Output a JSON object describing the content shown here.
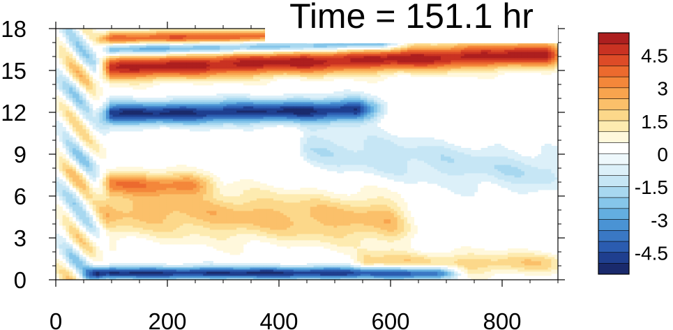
{
  "title": "Time = 151.1 hr",
  "chart_data": {
    "type": "heatmap",
    "title": "Time = 151.1 hr",
    "xlabel": "",
    "ylabel": "",
    "xlim": [
      0,
      900
    ],
    "ylim": [
      0,
      18
    ],
    "x_ticks": [
      0,
      200,
      400,
      600,
      800
    ],
    "x_tick_labels": [
      "0",
      "200",
      "400",
      "600",
      "800"
    ],
    "y_ticks": [
      0,
      3,
      6,
      9,
      12,
      15,
      18
    ],
    "y_tick_labels": [
      "0",
      "3",
      "6",
      "9",
      "12",
      "15",
      "18"
    ],
    "grid": false,
    "legend_placement": "right",
    "colorbar": {
      "levels": [
        -5.5,
        -5,
        -4.5,
        -4,
        -3.5,
        -3,
        -2.5,
        -2,
        -1.5,
        -1,
        -0.5,
        0,
        0.5,
        1,
        1.5,
        2,
        2.5,
        3,
        3.5,
        4,
        4.5,
        5,
        5.5
      ],
      "colors": [
        "#1a2a6c",
        "#1f3f8f",
        "#2b5cb0",
        "#3a78c4",
        "#4a93d4",
        "#63aee0",
        "#86c6ea",
        "#a8d8f0",
        "#c6e6f5",
        "#dcf0f9",
        "#eef8fc",
        "#ffffff",
        "#fff8dc",
        "#fdebb0",
        "#fcd88a",
        "#fbc06a",
        "#f8a44e",
        "#f4873a",
        "#ec6a2e",
        "#dd4b27",
        "#c93222",
        "#ad1f1f"
      ],
      "tick_values": [
        4.5,
        3,
        1.5,
        0,
        -1.5,
        -3,
        -4.5
      ],
      "tick_labels": [
        "4.5",
        "3",
        "1.5",
        "0",
        "-1.5",
        "-3",
        "-4.5"
      ]
    },
    "features": [
      {
        "kind": "band",
        "sign": 1,
        "x_start": 95,
        "x_end": 900,
        "y_center": 15.2,
        "y_center_end": 16.2,
        "width": 0.9,
        "peak": 5.2
      },
      {
        "kind": "band",
        "sign": -1,
        "x_start": 95,
        "x_end": 560,
        "y_center": 11.9,
        "y_center_end": 12.2,
        "width": 0.8,
        "peak": 5.0
      },
      {
        "kind": "band",
        "sign": -1,
        "x_start": 70,
        "x_end": 700,
        "y_center": 0.5,
        "y_center_end": 0.5,
        "width": 0.45,
        "peak": 5.0
      },
      {
        "kind": "band",
        "sign": 1,
        "x_start": 95,
        "x_end": 470,
        "y_center": 17.3,
        "y_center_end": 17.5,
        "width": 0.5,
        "peak": 4.0
      },
      {
        "kind": "band",
        "sign": -1,
        "x_start": 95,
        "x_end": 600,
        "y_center": 16.5,
        "y_center_end": 16.9,
        "width": 0.45,
        "peak": 3.5
      },
      {
        "kind": "band",
        "sign": 1,
        "x_start": 90,
        "x_end": 620,
        "y_center": 5.0,
        "y_center_end": 4.2,
        "width": 1.8,
        "peak": 2.2
      },
      {
        "kind": "band",
        "sign": 1,
        "x_start": 95,
        "x_end": 260,
        "y_center": 7.0,
        "y_center_end": 6.8,
        "width": 0.8,
        "peak": 2.8
      },
      {
        "kind": "band",
        "sign": -1,
        "x_start": 450,
        "x_end": 900,
        "y_center": 9.5,
        "y_center_end": 7.5,
        "width": 1.6,
        "peak": 1.3
      },
      {
        "kind": "band",
        "sign": 1,
        "x_start": 550,
        "x_end": 900,
        "y_center": 1.2,
        "y_center_end": 1.2,
        "width": 0.8,
        "peak": 1.8
      }
    ]
  }
}
